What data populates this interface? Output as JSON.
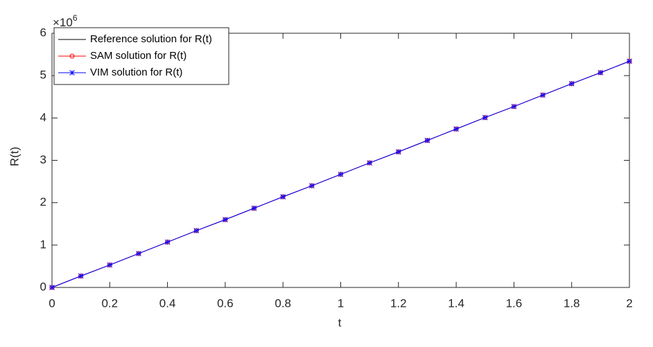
{
  "chart_data": {
    "type": "line",
    "x_label": "t",
    "y_label": "R(t)",
    "y_multiplier": "×10",
    "y_multiplier_exponent": "6",
    "x": [
      0,
      0.1,
      0.2,
      0.3,
      0.4,
      0.5,
      0.6,
      0.7,
      0.8,
      0.9,
      1,
      1.1,
      1.2,
      1.3,
      1.4,
      1.5,
      1.6,
      1.7,
      1.8,
      1.9,
      2
    ],
    "series": [
      {
        "name": "Reference solution for R(t)",
        "color": "#000000",
        "marker": "none",
        "values": [
          0,
          0.27,
          0.53,
          0.8,
          1.07,
          1.34,
          1.6,
          1.87,
          2.14,
          2.4,
          2.67,
          2.94,
          3.2,
          3.47,
          3.74,
          4.01,
          4.27,
          4.54,
          4.81,
          5.07,
          5.34
        ]
      },
      {
        "name": "SAM solution for R(t)",
        "color": "#ff0000",
        "marker": "circle",
        "values": [
          0,
          0.27,
          0.53,
          0.8,
          1.07,
          1.34,
          1.6,
          1.87,
          2.14,
          2.4,
          2.67,
          2.94,
          3.2,
          3.47,
          3.74,
          4.01,
          4.27,
          4.54,
          4.81,
          5.07,
          5.34
        ]
      },
      {
        "name": "VIM solution for R(t)",
        "color": "#0000ff",
        "marker": "asterisk",
        "values": [
          0,
          0.27,
          0.53,
          0.8,
          1.07,
          1.34,
          1.6,
          1.87,
          2.14,
          2.4,
          2.67,
          2.94,
          3.2,
          3.47,
          3.74,
          4.01,
          4.27,
          4.54,
          4.81,
          5.07,
          5.34
        ]
      }
    ],
    "xlim": [
      0,
      2
    ],
    "xticks": [
      0,
      0.2,
      0.4,
      0.6,
      0.8,
      1,
      1.2,
      1.4,
      1.6,
      1.8,
      2
    ],
    "ylim": [
      0,
      6
    ],
    "yticks": [
      0,
      1,
      2,
      3,
      4,
      5,
      6
    ],
    "legend": "upper-left",
    "grid": false
  }
}
